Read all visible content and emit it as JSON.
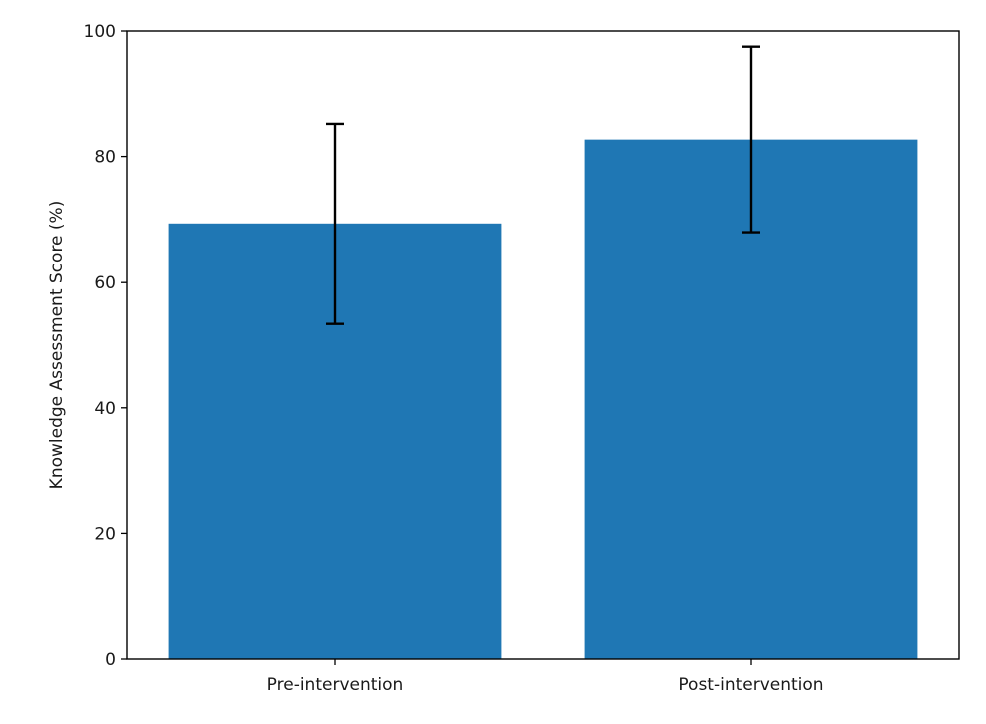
{
  "chart_data": {
    "type": "bar",
    "title": "",
    "xlabel": "",
    "ylabel": "Knowledge Assessment Score (%)",
    "categories": [
      "Pre-intervention",
      "Post-intervention"
    ],
    "values": [
      69.3,
      82.7
    ],
    "error": [
      15.9,
      14.8
    ],
    "ylim": [
      0,
      100
    ],
    "yticks": [
      0,
      20,
      40,
      60,
      80,
      100
    ],
    "grid": false,
    "bar_color": "#1f77b4",
    "error_color": "#000000"
  }
}
